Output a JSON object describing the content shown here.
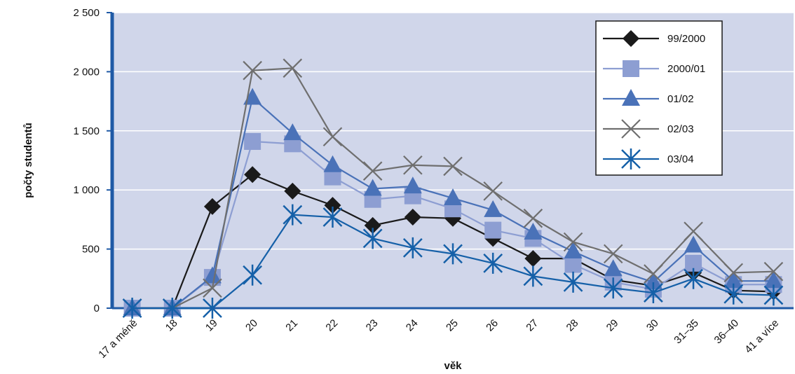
{
  "chart_data": {
    "type": "line",
    "y_label": "počty studentů",
    "x_label": "věk",
    "categories": [
      "17 a méně",
      "18",
      "19",
      "20",
      "21",
      "22",
      "23",
      "24",
      "25",
      "26",
      "27",
      "28",
      "29",
      "30",
      "31–35",
      "36–40",
      "41 a více"
    ],
    "series": [
      {
        "name": "99/2000",
        "color": "#1a1a1a",
        "marker": "diamond",
        "values": [
          0,
          0,
          860,
          1130,
          990,
          870,
          700,
          770,
          760,
          590,
          420,
          420,
          240,
          190,
          300,
          150,
          140
        ]
      },
      {
        "name": "2000/01",
        "color": "#8d9ed2",
        "marker": "square",
        "values": [
          0,
          0,
          260,
          1410,
          1390,
          1110,
          920,
          950,
          840,
          660,
          590,
          370,
          220,
          160,
          380,
          200,
          200
        ]
      },
      {
        "name": "01/02",
        "color": "#4a72b8",
        "marker": "triangle",
        "values": [
          0,
          0,
          270,
          1780,
          1480,
          1210,
          1010,
          1030,
          930,
          830,
          640,
          480,
          330,
          220,
          530,
          230,
          230
        ]
      },
      {
        "name": "02/03",
        "color": "#6f6f6f",
        "marker": "x",
        "values": [
          0,
          0,
          170,
          2010,
          2030,
          1450,
          1160,
          1210,
          1200,
          990,
          760,
          560,
          460,
          290,
          650,
          300,
          310
        ]
      },
      {
        "name": "03/04",
        "color": "#1560a8",
        "marker": "star",
        "values": [
          0,
          0,
          0,
          280,
          790,
          770,
          590,
          510,
          460,
          380,
          270,
          220,
          170,
          130,
          250,
          120,
          110
        ]
      }
    ],
    "ylim": [
      0,
      2500
    ],
    "yticks": [
      0,
      500,
      {
        "value": 1000,
        "label": "1 000"
      },
      {
        "value": 1500,
        "label": "1 500"
      },
      {
        "value": 2000,
        "label": "2 000"
      },
      {
        "value": 2500,
        "label": "2 500"
      }
    ],
    "grid": true,
    "legend": "upper-right"
  }
}
